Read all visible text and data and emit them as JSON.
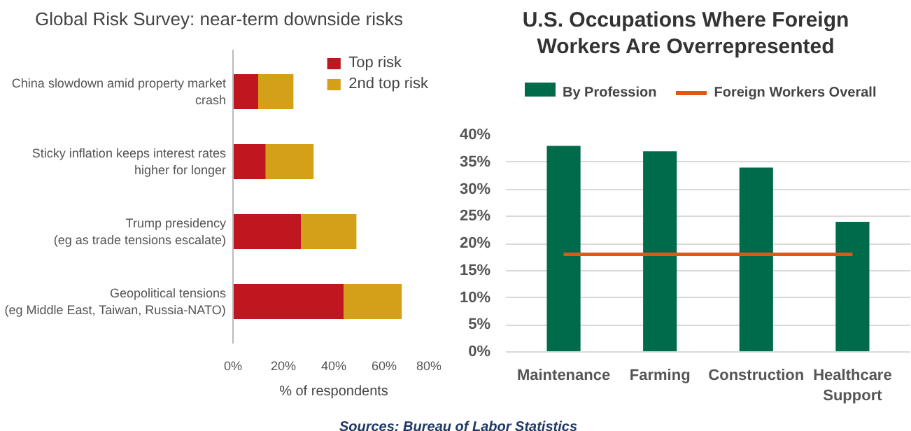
{
  "chart_data": [
    {
      "type": "bar",
      "title": "Global Risk Survey: near-term downside risks",
      "orientation": "horizontal",
      "stacked": true,
      "categories": [
        "China slowdown amid property market crash",
        "Sticky inflation keeps interest rates higher for longer",
        "Trump presidency (eg as trade tensions escalate)",
        "Geopolitical tensions (eg Middle East, Taiwan, Russia-NATO)"
      ],
      "series": [
        {
          "name": "Top risk",
          "color": "#c0161f",
          "values": [
            10,
            13,
            27,
            44
          ]
        },
        {
          "name": "2nd top risk",
          "color": "#d4a017",
          "values": [
            14,
            19,
            22,
            23
          ]
        }
      ],
      "xlabel": "% of respondents",
      "xlim": [
        0,
        80
      ],
      "xticks": [
        {
          "value": 0,
          "label": "0%"
        },
        {
          "value": 20,
          "label": "20%"
        },
        {
          "value": 40,
          "label": "40%"
        },
        {
          "value": 60,
          "label": "60%"
        },
        {
          "value": 80,
          "label": "80%"
        }
      ],
      "grid": false,
      "legend": "top right"
    },
    {
      "type": "bar",
      "title": "U.S. Occupations Where Foreign Workers Are Overrepresented",
      "categories": [
        "Maintenance",
        "Farming",
        "Construction",
        "Healthcare Support"
      ],
      "series": [
        {
          "name": "By Profession",
          "color": "#006b4a",
          "values": [
            38,
            37,
            34,
            24
          ]
        },
        {
          "name": "Foreign Workers Overall",
          "type": "line",
          "color": "#e0561b",
          "values": [
            18,
            18,
            18,
            18
          ]
        }
      ],
      "ylim": [
        0,
        40
      ],
      "yticks": [
        {
          "value": 0,
          "label": "0%"
        },
        {
          "value": 5,
          "label": "5%"
        },
        {
          "value": 10,
          "label": "10%"
        },
        {
          "value": 15,
          "label": "15%"
        },
        {
          "value": 20,
          "label": "20%"
        },
        {
          "value": 25,
          "label": "25%"
        },
        {
          "value": 30,
          "label": "30%"
        },
        {
          "value": 35,
          "label": "35%"
        },
        {
          "value": 40,
          "label": "40%"
        }
      ],
      "grid": "y",
      "legend": "top",
      "annotations": [
        "Sources: Bureau of Labor Statistics"
      ]
    }
  ]
}
